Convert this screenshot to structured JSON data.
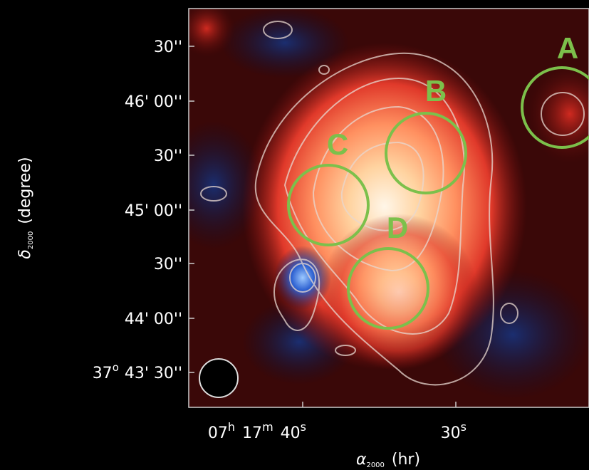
{
  "figure": {
    "y_axis_label": {
      "symbol": "δ",
      "subscript": "2000",
      "unit": "(degree)"
    },
    "y_ticks": [
      "30''",
      "46' 00''",
      "30''",
      "45' 00''",
      "30''",
      "44' 00''",
      {
        "deg": "37",
        "deg_mark": "o",
        "rest": "43' 30''"
      }
    ],
    "x_ticks": [
      {
        "parts": [
          [
            "07",
            "h"
          ],
          [
            "17",
            "m"
          ],
          [
            "40",
            "s"
          ]
        ]
      },
      {
        "parts": [
          [
            "30",
            "s"
          ]
        ]
      }
    ],
    "x_axis_label": {
      "symbol": "α",
      "subscript": "2000",
      "unit": "(hr)"
    },
    "regions": [
      {
        "label": "A"
      },
      {
        "label": "B"
      },
      {
        "label": "C"
      },
      {
        "label": "D"
      }
    ]
  }
}
